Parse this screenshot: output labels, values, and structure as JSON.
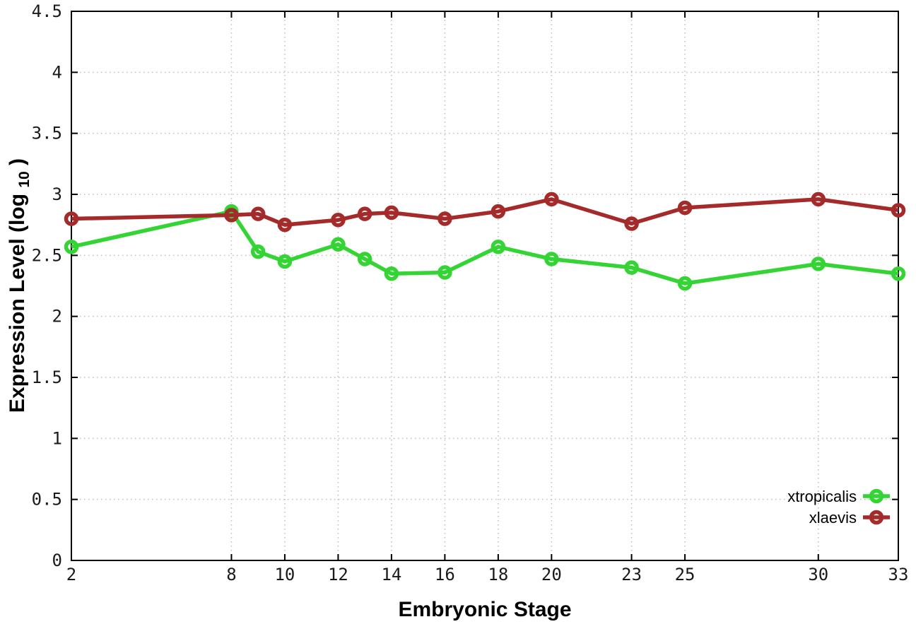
{
  "chart_data": {
    "type": "line",
    "title": "",
    "xlabel": "Embryonic Stage",
    "ylabel": "Expression Level (log10)",
    "ylabel_parts": {
      "main": "Expression Level (log",
      "sub": "10",
      "end": ")"
    },
    "x": [
      2,
      8,
      9,
      10,
      12,
      13,
      14,
      16,
      18,
      20,
      23,
      25,
      30,
      33
    ],
    "series": [
      {
        "name": "xtropicalis",
        "color": "#33d433",
        "values": [
          2.57,
          2.86,
          2.53,
          2.45,
          2.59,
          2.47,
          2.35,
          2.36,
          2.57,
          2.47,
          2.4,
          2.27,
          2.43,
          2.35
        ]
      },
      {
        "name": "xlaevis",
        "color": "#a52a2a",
        "values": [
          2.8,
          2.83,
          2.84,
          2.75,
          2.79,
          2.84,
          2.85,
          2.8,
          2.86,
          2.96,
          2.76,
          2.89,
          2.96,
          2.87
        ]
      }
    ],
    "xlim": [
      2,
      33
    ],
    "ylim": [
      0,
      4.5
    ],
    "xticks": [
      2,
      8,
      10,
      12,
      14,
      16,
      18,
      20,
      23,
      25,
      30,
      33
    ],
    "xtick_labels": [
      "2",
      "8",
      "10",
      "12",
      "14",
      "16",
      "18",
      "20",
      "23",
      "25",
      "30",
      "33"
    ],
    "yticks": [
      0,
      0.5,
      1,
      1.5,
      2,
      2.5,
      3,
      3.5,
      4,
      4.5
    ],
    "ytick_labels": [
      "0",
      "0.5",
      "1",
      "1.5",
      "2",
      "2.5",
      "3",
      "3.5",
      "4",
      "4.5"
    ],
    "grid": true,
    "legend_position": "bottom-right",
    "legend_order": [
      "xtropicalis",
      "xlaevis"
    ]
  },
  "colors": {
    "background": "#ffffff",
    "border": "#000000",
    "grid": "#bdbdbd",
    "tick_text": "#1a1a1a",
    "xtropicalis": "#33d433",
    "xlaevis": "#a52a2a"
  }
}
